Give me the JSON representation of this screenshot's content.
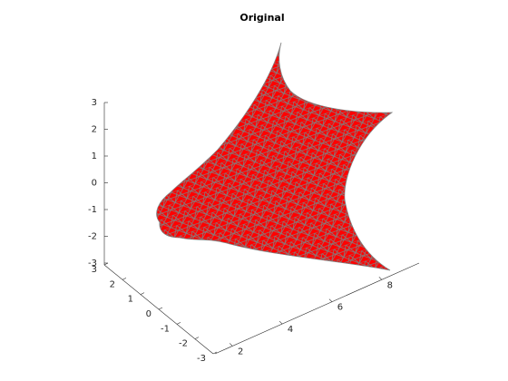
{
  "chart_data": {
    "type": "surface",
    "title": "Original",
    "xlim": [
      1.3,
      9.5
    ],
    "xticks": [
      2,
      4,
      6,
      8
    ],
    "ylim": [
      -3,
      3
    ],
    "yticks": [
      -3,
      -2,
      -1,
      0,
      1,
      2,
      3
    ],
    "zlim": [
      -3,
      3
    ],
    "zticks": [
      -3,
      -2,
      -1,
      0,
      1,
      2,
      3
    ],
    "color": "#ff0000",
    "edge_color": "#808080"
  }
}
